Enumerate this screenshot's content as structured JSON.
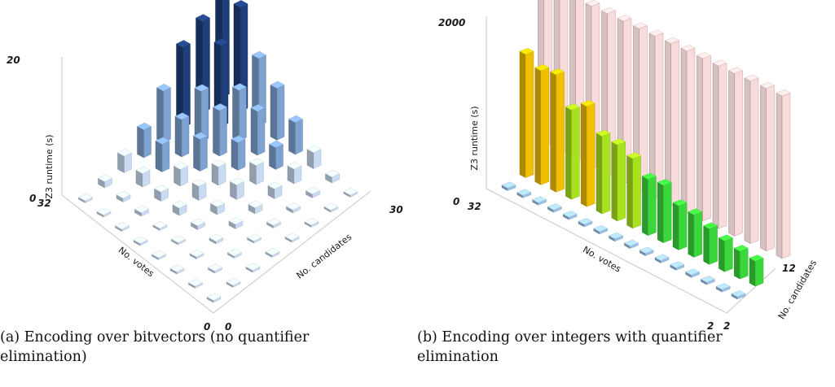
{
  "chart_data": [
    {
      "type": "bar3d",
      "zlabel": "Z3 runtime (s)",
      "xlabel": "No. votes",
      "ylabel": "No. candidates",
      "z_ticks": [
        "20",
        "0"
      ],
      "votes_ticks": [
        "32",
        "0"
      ],
      "candidates_ticks": [
        "30",
        "0"
      ],
      "zlim": [
        0,
        20
      ],
      "grid": "8x8 bars; runtime rising toward many votes and many candidates, peak about 20 s",
      "caption": "(a) Encoding over bitvectors (no quantifier elimination)",
      "caption_lines": [
        "(a) Encoding over bitvectors (no quantifier",
        "elimination)"
      ],
      "colors": {
        "low": "#c9dbf2",
        "mid": "#7ea3d0",
        "high": "#1f3f7a"
      }
    },
    {
      "type": "bar3d",
      "zlabel": "Z3 runtime (s)",
      "xlabel": "No. votes",
      "ylabel": "No. candidates",
      "z_ticks": [
        "2000",
        "0"
      ],
      "votes_ticks": [
        "32",
        "2"
      ],
      "candidates_ticks": [
        "12",
        "2"
      ],
      "zlim": [
        0,
        2000
      ],
      "grid": "16 vote values x 3 candidate values shown; third row translucent (timeouts near 2000 s)",
      "caption": "(b) Encoding over integers with quantifier elimination",
      "caption_lines": [
        "(b) Encoding over integers with quantifier",
        "elimination"
      ],
      "colors": {
        "row1": "#9cc1e6",
        "row2": "#3bd63b",
        "row3_back": "#f2b8b8",
        "gold": "#f0c000"
      }
    }
  ]
}
